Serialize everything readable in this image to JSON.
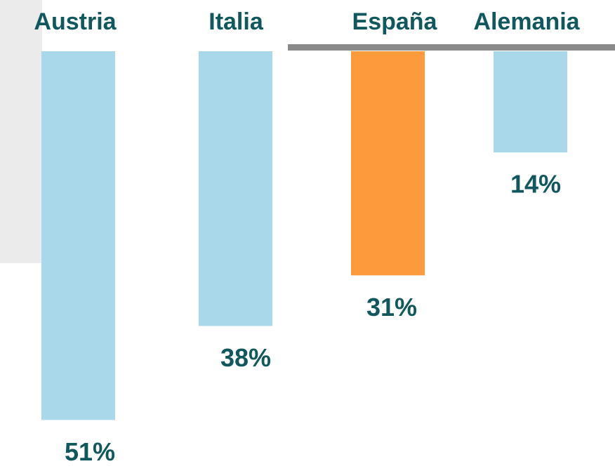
{
  "chart_data": {
    "type": "bar",
    "categories": [
      "Austria",
      "Italia",
      "España",
      "Alemania"
    ],
    "values": [
      51,
      38,
      31,
      14
    ],
    "value_labels": [
      "51%",
      "38%",
      "31%",
      "14%"
    ],
    "colors": [
      "#a9d8ea",
      "#a9d8ea",
      "#fd9a3b",
      "#a9d8ea"
    ]
  }
}
